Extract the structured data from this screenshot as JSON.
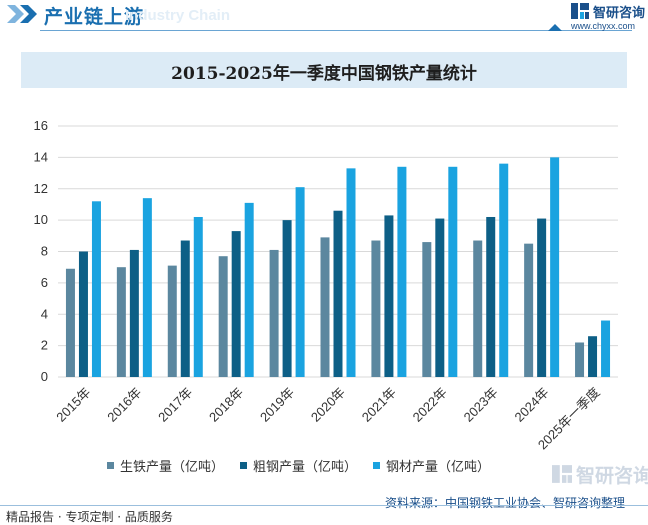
{
  "header": {
    "title": "产业链上游",
    "ghost_text": "Industry Chain"
  },
  "brand": {
    "name": "智研咨询",
    "url": "www.chyxx.com"
  },
  "chart_data": {
    "type": "bar",
    "title": "2015-2025年一季度中国钢铁产量统计",
    "categories": [
      "2015年",
      "2016年",
      "2017年",
      "2018年",
      "2019年",
      "2020年",
      "2021年",
      "2022年",
      "2023年",
      "2024年",
      "2025年一季度"
    ],
    "series": [
      {
        "name": "生铁产量（亿吨）",
        "color": "#5b879f",
        "values": [
          6.9,
          7.0,
          7.1,
          7.7,
          8.1,
          8.9,
          8.7,
          8.6,
          8.7,
          8.5,
          2.2
        ]
      },
      {
        "name": "粗钢产量（亿吨）",
        "color": "#0d5f86",
        "values": [
          8.0,
          8.1,
          8.7,
          9.3,
          10.0,
          10.6,
          10.3,
          10.1,
          10.2,
          10.1,
          2.6
        ]
      },
      {
        "name": "钢材产量（亿吨）",
        "color": "#1aa3e0",
        "values": [
          11.2,
          11.4,
          10.2,
          11.1,
          12.1,
          13.3,
          13.4,
          13.4,
          13.6,
          14.0,
          3.6
        ]
      }
    ],
    "yticks": [
      "0",
      "2",
      "4",
      "6",
      "8",
      "10",
      "12",
      "14",
      "16"
    ],
    "ylim": [
      0,
      16
    ],
    "grid": true,
    "xlabel": "",
    "ylabel": "",
    "legend_position": "bottom"
  },
  "footer": {
    "left": "精品报告 · 专项定制 · 品质服务",
    "source": "资料来源：中国钢铁工业协会、智研咨询整理",
    "logo_text": "智研咨询"
  }
}
